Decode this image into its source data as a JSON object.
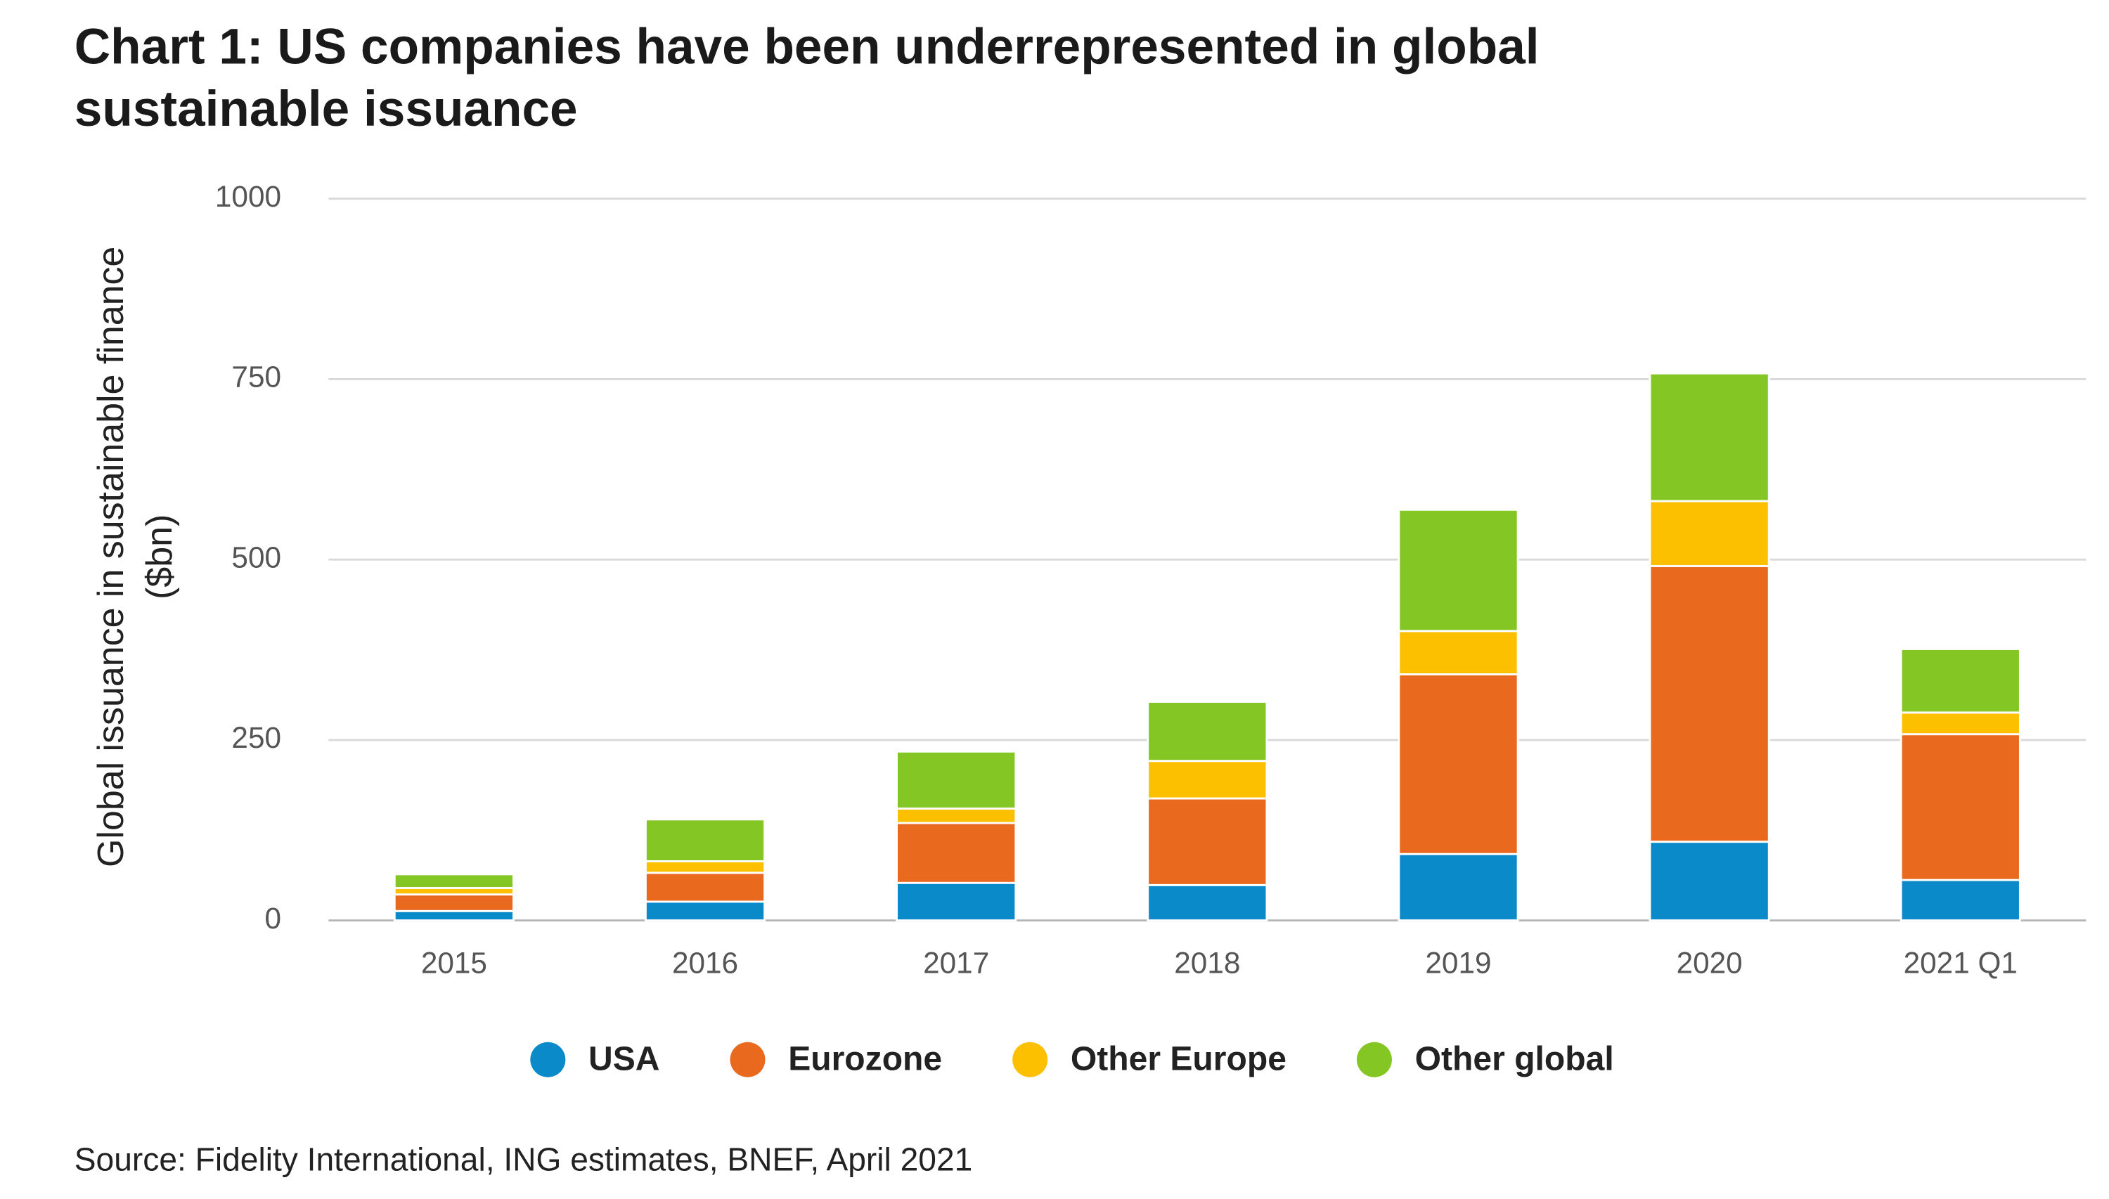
{
  "chart_data": {
    "type": "stacked_bar",
    "title": "Chart 1: US companies have been underrepresented in global sustainable issuance",
    "y_label": "Global issuance in sustainable finance ($bn)",
    "source": "Source: Fidelity International, ING estimates, BNEF, April 2021",
    "categories": [
      "2015",
      "2016",
      "2017",
      "2018",
      "2019",
      "2020",
      "2021 Q1"
    ],
    "series": [
      {
        "name": "USA",
        "color": "#0a8ac9",
        "values": [
          13,
          26,
          52,
          49,
          92,
          109,
          56
        ]
      },
      {
        "name": "Eurozone",
        "color": "#e96a1f",
        "values": [
          23,
          40,
          83,
          120,
          249,
          382,
          202
        ]
      },
      {
        "name": "Other Europe",
        "color": "#fdc000",
        "values": [
          9,
          16,
          20,
          52,
          60,
          90,
          30
        ]
      },
      {
        "name": "Other global",
        "color": "#84c623",
        "values": [
          19,
          58,
          79,
          82,
          168,
          177,
          88
        ]
      }
    ],
    "ylim": [
      0,
      1000
    ],
    "yticks": [
      0,
      250,
      500,
      750,
      1000
    ],
    "grid": true
  }
}
